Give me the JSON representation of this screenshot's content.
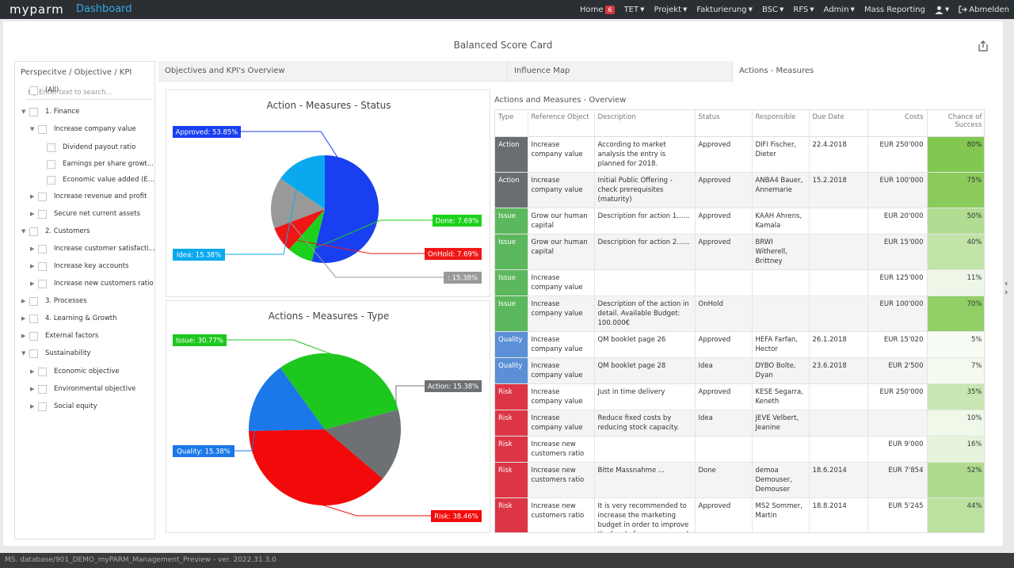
{
  "app": {
    "logo": "myparm",
    "section": "Dashboard"
  },
  "nav": [
    {
      "label": "Home",
      "badge": "6",
      "caret": false
    },
    {
      "label": "TET",
      "caret": true
    },
    {
      "label": "Projekt",
      "caret": true
    },
    {
      "label": "Fakturierung",
      "caret": true
    },
    {
      "label": "BSC",
      "caret": true
    },
    {
      "label": "RFS",
      "caret": true
    },
    {
      "label": "Admin",
      "caret": true
    },
    {
      "label": "Mass Reporting",
      "caret": false
    }
  ],
  "logout_label": "Abmelden",
  "page_title": "Balanced Score Card",
  "tree": {
    "header": "Perspecitve / Objective / KPI",
    "search_placeholder": "Enter text to search...",
    "items": [
      {
        "label": "(All)",
        "level": 0,
        "toggle": ""
      },
      {
        "label": "1. Finance",
        "level": 0,
        "toggle": "▼"
      },
      {
        "label": "Increase company value",
        "level": 1,
        "toggle": "▼"
      },
      {
        "label": "Dividend payout ratio",
        "level": 2,
        "toggle": ""
      },
      {
        "label": "Earnings per share growt...",
        "level": 2,
        "toggle": ""
      },
      {
        "label": "Economic value added (E...",
        "level": 2,
        "toggle": ""
      },
      {
        "label": "Increase revenue and profit",
        "level": 1,
        "toggle": "▶"
      },
      {
        "label": "Secure net current assets",
        "level": 1,
        "toggle": "▶"
      },
      {
        "label": "2. Customers",
        "level": 0,
        "toggle": "▼"
      },
      {
        "label": "Increase customer satisfacti...",
        "level": 1,
        "toggle": "▶"
      },
      {
        "label": "Increase key accounts",
        "level": 1,
        "toggle": "▶"
      },
      {
        "label": "Increase new customers ratio",
        "level": 1,
        "toggle": "▶"
      },
      {
        "label": "3. Processes",
        "level": 0,
        "toggle": "▶"
      },
      {
        "label": "4. Learning & Growth",
        "level": 0,
        "toggle": "▶"
      },
      {
        "label": "External factors",
        "level": 0,
        "toggle": "▶"
      },
      {
        "label": "Sustainability",
        "level": 0,
        "toggle": "▼"
      },
      {
        "label": "Economic objective",
        "level": 1,
        "toggle": "▶"
      },
      {
        "label": "Environmental objective",
        "level": 1,
        "toggle": "▶"
      },
      {
        "label": "Social equity",
        "level": 1,
        "toggle": "▶"
      }
    ]
  },
  "tabs": [
    {
      "label": "Objectives and KPI's Overview",
      "active": false
    },
    {
      "label": "Influence Map",
      "active": false
    },
    {
      "label": "Actions - Measures",
      "active": true
    }
  ],
  "chart_data": [
    {
      "type": "pie",
      "title": "Action - Measures - Status",
      "slices": [
        {
          "label": "Approved: 53.85%",
          "value": 53.85,
          "color": "#1a3ff0"
        },
        {
          "label": "Done: 7.69%",
          "value": 7.69,
          "color": "#1bd11b"
        },
        {
          "label": "OnHold: 7.69%",
          "value": 7.69,
          "color": "#f01616"
        },
        {
          "label": ": 15.38%",
          "value": 15.38,
          "color": "#999999"
        },
        {
          "label": "Idea: 15.38%",
          "value": 15.38,
          "color": "#0aa9ee"
        }
      ]
    },
    {
      "type": "pie",
      "title": "Actions - Measures - Type",
      "slices": [
        {
          "label": "Action: 15.38%",
          "value": 15.38,
          "color": "#6e7173"
        },
        {
          "label": "Risk: 38.46%",
          "value": 38.46,
          "color": "#f20a0a"
        },
        {
          "label": "Quality: 15.38%",
          "value": 15.38,
          "color": "#1a78e8"
        },
        {
          "label": "Issue: 30.77%",
          "value": 30.77,
          "color": "#1ec71e"
        }
      ]
    }
  ],
  "table": {
    "title": "Actions and Measures - Overview",
    "headers": [
      "Type",
      "Reference Object",
      "Description",
      "Status",
      "Responsible",
      "Due Date",
      "Costs",
      "Chance of Success"
    ],
    "rows": [
      {
        "type": "Action",
        "ref": "Increase company value",
        "desc": "According to market analysis the entry is planned for 2018.",
        "status": "Approved",
        "resp": "DIFI Fischer, Dieter",
        "due": "22.4.2018",
        "costs": "EUR 250'000",
        "chance": "80%",
        "chance_value": 0.8
      },
      {
        "type": "Action",
        "ref": "Increase company value",
        "desc": "Initial Public Offering - check prerequisites (maturity)",
        "status": "Approved",
        "resp": "ANBA4 Bauer, Annemarie",
        "due": "15.2.2018",
        "costs": "EUR 100'000",
        "chance": "75%",
        "chance_value": 0.75
      },
      {
        "type": "Issue",
        "ref": "Grow our human capital",
        "desc": "Description for action 1......",
        "status": "Approved",
        "resp": "KAAH Ahrens, Kamala",
        "due": "",
        "costs": "EUR 20'000",
        "chance": "50%",
        "chance_value": 0.5
      },
      {
        "type": "Issue",
        "ref": "Grow our human capital",
        "desc": "Description for action 2......",
        "status": "Approved",
        "resp": "BRWI Witherell, Brittney",
        "due": "",
        "costs": "EUR 15'000",
        "chance": "40%",
        "chance_value": 0.4
      },
      {
        "type": "Issue",
        "ref": "Increase company value",
        "desc": "",
        "status": "",
        "resp": "",
        "due": "",
        "costs": "EUR 125'000",
        "chance": "11%",
        "chance_value": 0.11
      },
      {
        "type": "Issue",
        "ref": "Increase company value",
        "desc": "Description of the action in detail. Available Budget: 100.000€",
        "status": "OnHold",
        "resp": "",
        "due": "",
        "costs": "EUR 100'000",
        "chance": "70%",
        "chance_value": 0.7
      },
      {
        "type": "Quality",
        "ref": "Increase company value",
        "desc": "QM booklet page 26",
        "status": "Approved",
        "resp": "HEFA Farfan, Hector",
        "due": "26.1.2018",
        "costs": "EUR 15'020",
        "chance": "5%",
        "chance_value": 0.05
      },
      {
        "type": "Quality",
        "ref": "Increase company value",
        "desc": "QM booklet page 28",
        "status": "Idea",
        "resp": "DYBO Bolte, Dyan",
        "due": "23.6.2018",
        "costs": "EUR 2'500",
        "chance": "7%",
        "chance_value": 0.07
      },
      {
        "type": "Risk",
        "ref": "Increase company value",
        "desc": "Just in time delivery",
        "status": "Approved",
        "resp": "KESE Segarra, Keneth",
        "due": "",
        "costs": "EUR 250'000",
        "chance": "35%",
        "chance_value": 0.35
      },
      {
        "type": "Risk",
        "ref": "Increase company value",
        "desc": "Reduce fixed costs by reducing stock capacity.",
        "status": "Idea",
        "resp": "JEVE Velbert, Jeanine",
        "due": "",
        "costs": "",
        "chance": "10%",
        "chance_value": 0.1
      },
      {
        "type": "Risk",
        "ref": "Increase new customers ratio",
        "desc": "",
        "status": "",
        "resp": "",
        "due": "",
        "costs": "EUR 9'000",
        "chance": "16%",
        "chance_value": 0.16
      },
      {
        "type": "Risk",
        "ref": "Increase new customers ratio",
        "desc": "Bitte Massnahme ...",
        "status": "Done",
        "resp": "demoa Demouser, Demouser",
        "due": "18.6.2014",
        "costs": "EUR 7'854",
        "chance": "52%",
        "chance_value": 0.52
      },
      {
        "type": "Risk",
        "ref": "Increase new customers ratio",
        "desc": "It is very recommended to increase the marketing budget in order to improve the level of awareness and win new customers. Otherwise it might be that",
        "status": "Approved",
        "resp": "MS2 Sommer, Martin",
        "due": "18.8.2014",
        "costs": "EUR 5'245",
        "chance": "44%",
        "chance_value": 0.44
      }
    ]
  },
  "type_colors": {
    "Action": "#6b6e70",
    "Issue": "#5cb85c",
    "Quality": "#5b8fd6",
    "Risk": "#dc3545"
  },
  "footer": "MS. database/901_DEMO_myPARM_Management_Preview - ver. 2022.31.3.0"
}
